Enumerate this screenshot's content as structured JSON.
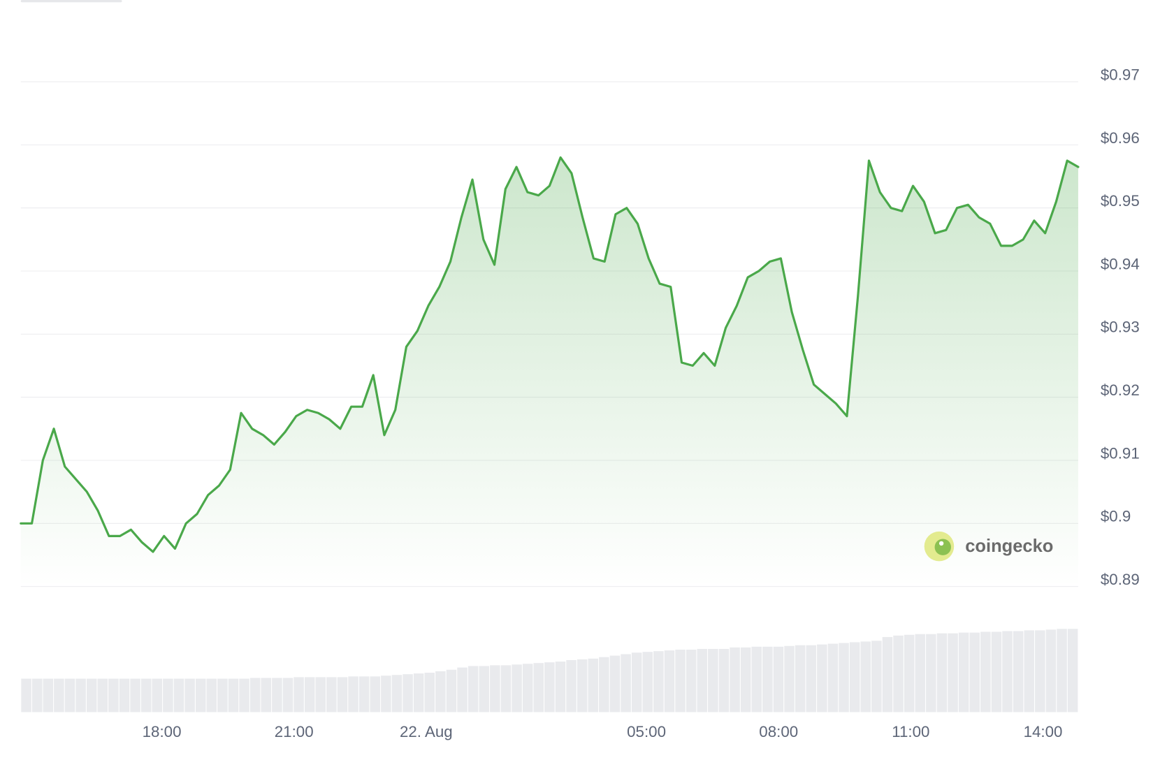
{
  "chart_data": {
    "type": "line",
    "series": [
      {
        "color": "#4aa84a",
        "values": [
          0.9,
          0.9,
          0.91,
          0.915,
          0.909,
          0.907,
          0.905,
          0.902,
          0.898,
          0.898,
          0.899,
          0.897,
          0.8955,
          0.898,
          0.896,
          0.9,
          0.9015,
          0.9045,
          0.906,
          0.9085,
          0.9175,
          0.915,
          0.914,
          0.9125,
          0.9145,
          0.917,
          0.918,
          0.9175,
          0.9165,
          0.915,
          0.9185,
          0.9185,
          0.9235,
          0.914,
          0.918,
          0.928,
          0.9305,
          0.9345,
          0.9375,
          0.9415,
          0.9485,
          0.9545,
          0.945,
          0.941,
          0.953,
          0.9565,
          0.9525,
          0.952,
          0.9535,
          0.958,
          0.9555,
          0.9485,
          0.942,
          0.9415,
          0.949,
          0.95,
          0.9475,
          0.942,
          0.938,
          0.9375,
          0.9255,
          0.925,
          0.927,
          0.925,
          0.931,
          0.9345,
          0.939,
          0.94,
          0.9415,
          0.942,
          0.9335,
          0.9275,
          0.922,
          0.9205,
          0.919,
          0.917,
          0.936,
          0.9575,
          0.9525,
          0.95,
          0.9495,
          0.9535,
          0.951,
          0.946,
          0.9465,
          0.95,
          0.9505,
          0.9485,
          0.9475,
          0.944,
          0.944,
          0.945,
          0.948,
          0.946,
          0.951,
          0.9575,
          0.9565
        ]
      }
    ],
    "xlim": [
      0,
      96
    ],
    "xticks": [
      {
        "value": 12.8,
        "label": "18:00"
      },
      {
        "value": 24.8,
        "label": "21:00"
      },
      {
        "value": 36.8,
        "label": "22. Aug"
      },
      {
        "value": 56.8,
        "label": "05:00"
      },
      {
        "value": 68.8,
        "label": "08:00"
      },
      {
        "value": 80.8,
        "label": "11:00"
      },
      {
        "value": 92.8,
        "label": "14:00"
      }
    ],
    "ylim": [
      0.89,
      0.97
    ],
    "yticks": [
      {
        "value": 0.97,
        "label": "$0.97"
      },
      {
        "value": 0.96,
        "label": "$0.96"
      },
      {
        "value": 0.95,
        "label": "$0.95"
      },
      {
        "value": 0.94,
        "label": "$0.94"
      },
      {
        "value": 0.93,
        "label": "$0.93"
      },
      {
        "value": 0.92,
        "label": "$0.92"
      },
      {
        "value": 0.91,
        "label": "$0.91"
      },
      {
        "value": 0.9,
        "label": "$0.9"
      },
      {
        "value": 0.89,
        "label": "$0.89"
      }
    ],
    "grid": true,
    "volume": {
      "color": "#e9eaed",
      "lim": [
        0,
        150
      ],
      "values": [
        45,
        45,
        45,
        45,
        45,
        45,
        45,
        45,
        45,
        45,
        45,
        45,
        45,
        45,
        45,
        45,
        45,
        45,
        45,
        45,
        45,
        46,
        46,
        46,
        46,
        47,
        47,
        47,
        47,
        47,
        48,
        48,
        48,
        49,
        50,
        51,
        52,
        53,
        55,
        57,
        60,
        62,
        62,
        63,
        63,
        64,
        65,
        66,
        67,
        68,
        70,
        71,
        72,
        74,
        76,
        78,
        80,
        81,
        82,
        83,
        84,
        84,
        85,
        85,
        85,
        87,
        87,
        88,
        88,
        88,
        89,
        90,
        90,
        91,
        92,
        93,
        94,
        95,
        96,
        101,
        103,
        104,
        105,
        105,
        106,
        106,
        107,
        107,
        108,
        108,
        109,
        109,
        110,
        110,
        111,
        112,
        112
      ]
    },
    "watermark": "coingecko"
  }
}
